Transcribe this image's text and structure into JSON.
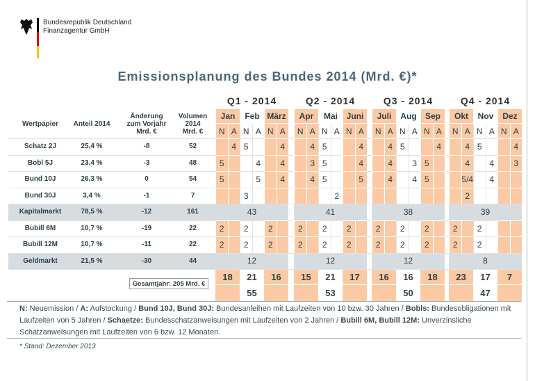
{
  "header": {
    "org": [
      "Bundesrepublik Deutschland",
      "Finanzagentur GmbH"
    ]
  },
  "title": "Emissionsplanung des Bundes 2014 (Mrd. €)*",
  "table": {
    "columns": [
      [
        "Wertpapier"
      ],
      [
        "Anteil 2014"
      ],
      [
        "Änderung",
        "zum Vorjahr",
        "Mrd. €"
      ],
      [
        "Volumen",
        "2014",
        "Mrd. €"
      ]
    ],
    "quarters": [
      {
        "label": "Q1 - 2014",
        "months": [
          "Jan",
          "Feb",
          "März"
        ]
      },
      {
        "label": "Q2 - 2014",
        "months": [
          "Apr",
          "Mai",
          "Juni"
        ]
      },
      {
        "label": "Q3 - 2014",
        "months": [
          "Juli",
          "Aug",
          "Sep"
        ]
      },
      {
        "label": "Q4 - 2014",
        "months": [
          "Okt",
          "Nov",
          "Dez"
        ]
      }
    ],
    "sub": [
      "N",
      "A"
    ],
    "rows": [
      {
        "name": "Schatz 2J",
        "share": "25,4 %",
        "change": -8,
        "volume": 52,
        "cells": [
          [
            null,
            4
          ],
          [
            5,
            null
          ],
          [
            null,
            4
          ],
          [
            null,
            4
          ],
          [
            5,
            null
          ],
          [
            null,
            4
          ],
          [
            null,
            4
          ],
          [
            5,
            null
          ],
          [
            null,
            4
          ],
          [
            null,
            4
          ],
          [
            5,
            null
          ],
          [
            null,
            4
          ]
        ]
      },
      {
        "name": "Bobl 5J",
        "share": "23,4 %",
        "change": -3,
        "volume": 48,
        "cells": [
          [
            5,
            null
          ],
          [
            null,
            4
          ],
          [
            null,
            4
          ],
          [
            null,
            3
          ],
          [
            5,
            null
          ],
          [
            null,
            4
          ],
          [
            null,
            4
          ],
          [
            null,
            3
          ],
          [
            5,
            null
          ],
          [
            null,
            4
          ],
          [
            null,
            4
          ],
          [
            null,
            3
          ]
        ]
      },
      {
        "name": "Bund 10J",
        "share": "26,3 %",
        "change": 0,
        "volume": 54,
        "cells": [
          [
            5,
            null
          ],
          [
            null,
            5
          ],
          [
            null,
            4
          ],
          [
            null,
            4
          ],
          [
            5,
            null
          ],
          [
            null,
            5
          ],
          [
            null,
            4
          ],
          [
            null,
            4
          ],
          [
            5,
            null
          ],
          [
            null,
            "5/4"
          ],
          [
            null,
            4
          ],
          [
            null,
            null
          ]
        ]
      },
      {
        "name": "Bund 30J",
        "share": "3,4 %",
        "change": -1,
        "volume": 7,
        "cells": [
          [
            null,
            null
          ],
          [
            3,
            null
          ],
          [
            null,
            null
          ],
          [
            null,
            null
          ],
          [
            null,
            2
          ],
          [
            null,
            null
          ],
          [
            null,
            null
          ],
          [
            null,
            null
          ],
          [
            null,
            null
          ],
          [
            null,
            2
          ],
          [
            null,
            null
          ],
          [
            null,
            null
          ]
        ]
      },
      {
        "name": "Kapitalmarkt",
        "share": "78,5 %",
        "change": -12,
        "volume": 161,
        "quarters": [
          43,
          41,
          38,
          39
        ]
      },
      {
        "name": "Bubill 6M",
        "share": "10,7 %",
        "change": -19,
        "volume": 22,
        "cells": [
          [
            2,
            null
          ],
          [
            2,
            null
          ],
          [
            2,
            null
          ],
          [
            2,
            null
          ],
          [
            2,
            null
          ],
          [
            2,
            null
          ],
          [
            2,
            null
          ],
          [
            2,
            null
          ],
          [
            2,
            null
          ],
          [
            2,
            null
          ],
          [
            2,
            null
          ],
          [
            null,
            null
          ]
        ]
      },
      {
        "name": "Bubill 12M",
        "share": "10,7 %",
        "change": -11,
        "volume": 22,
        "cells": [
          [
            2,
            null
          ],
          [
            2,
            null
          ],
          [
            2,
            null
          ],
          [
            2,
            null
          ],
          [
            2,
            null
          ],
          [
            2,
            null
          ],
          [
            2,
            null
          ],
          [
            2,
            null
          ],
          [
            2,
            null
          ],
          [
            2,
            null
          ],
          [
            2,
            null
          ],
          [
            null,
            null
          ]
        ]
      },
      {
        "name": "Geldmarkt",
        "share": "21,5 %",
        "change": -30,
        "volume": 44,
        "quarters": [
          12,
          12,
          12,
          8
        ]
      }
    ],
    "month_totals": [
      18,
      21,
      16,
      15,
      21,
      17,
      16,
      16,
      18,
      23,
      17,
      7
    ],
    "quarter_totals": [
      55,
      53,
      50,
      47
    ],
    "annual": "Gesamtjahr: 205 Mrd. €"
  },
  "footnote": [
    {
      "text": "N:",
      "bold": true
    },
    {
      "text": " Neuemission / ",
      "bold": false
    },
    {
      "text": "A:",
      "bold": true
    },
    {
      "text": " Aufstockung / ",
      "bold": false
    },
    {
      "text": "Bund 10J, Bund 30J:",
      "bold": true
    },
    {
      "text": " Bundesanleihen mit Laufzeiten von 10 bzw. 30 Jahren / ",
      "bold": false
    },
    {
      "text": "Bobls:",
      "bold": true
    },
    {
      "text": " Bundesobligationen mit Laufzeiten von 5 Jahren / ",
      "bold": false
    },
    {
      "text": "Schaetze:",
      "bold": true
    },
    {
      "text": " Bundesschatzanweisungen mit Laufzeiten von 2 Jahren / ",
      "bold": false
    },
    {
      "text": "Bubill 6M, Bubill 12M:",
      "bold": true
    },
    {
      "text": " Unverzinsliche Schatzanweisungen mit Laufzeiten von 6 bzw. 12 Monaten.",
      "bold": false
    }
  ],
  "stand": "* Stand: Dezember 2013"
}
